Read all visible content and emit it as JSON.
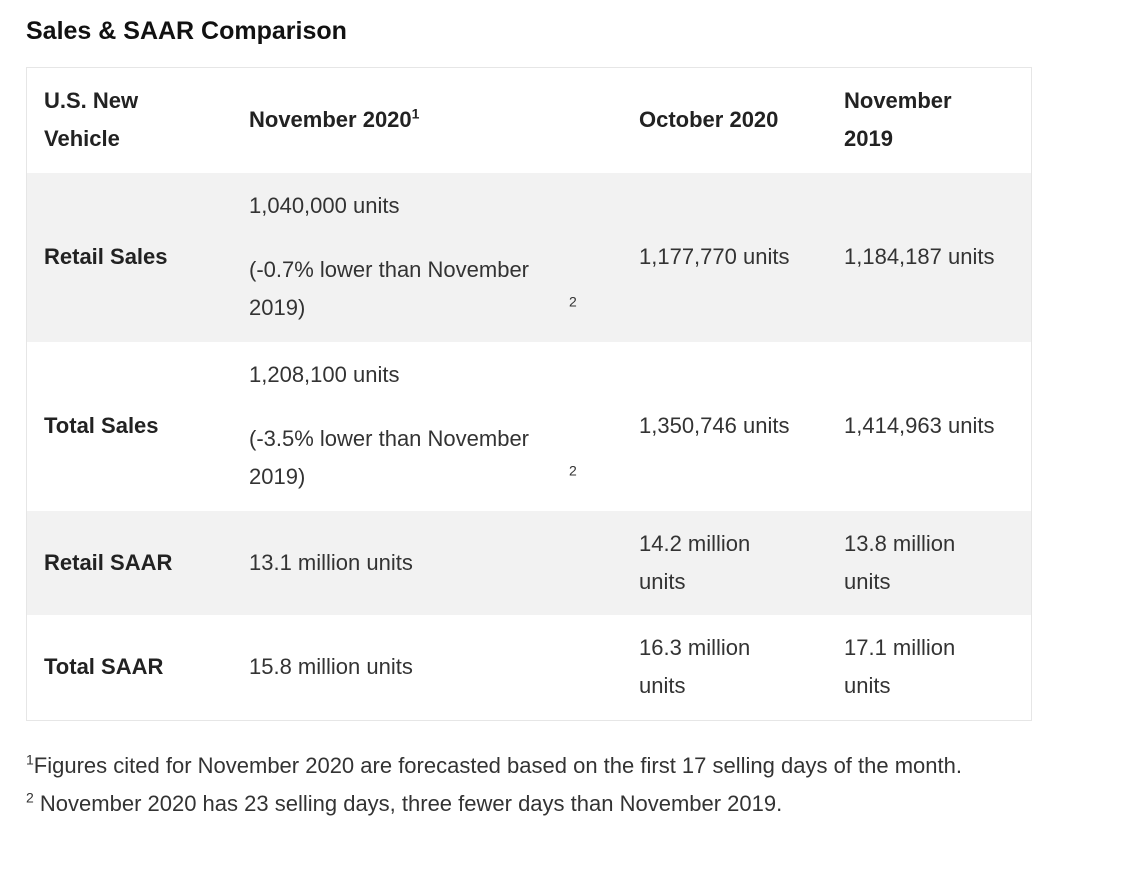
{
  "title": "Sales & SAAR Comparison",
  "table": {
    "headers": [
      {
        "label": "U.S. New Vehicle",
        "sup": ""
      },
      {
        "label": "November 2020",
        "sup": "1"
      },
      {
        "label": "October 2020",
        "sup": ""
      },
      {
        "label": "November 2019",
        "sup": ""
      }
    ],
    "rows": [
      {
        "label": "Retail Sales",
        "nov2020": "1,040,000 units",
        "nov2020_note": "(-0.7% lower than November 2019)",
        "nov2020_note_sup": "2",
        "oct2020": "1,177,770 units",
        "nov2019": "1,184,187 units"
      },
      {
        "label": "Total Sales",
        "nov2020": "1,208,100 units",
        "nov2020_note": "(-3.5% lower than November 2019)",
        "nov2020_note_sup": "2",
        "oct2020": "1,350,746 units",
        "nov2019": "1,414,963 units"
      },
      {
        "label": "Retail SAAR",
        "nov2020": "13.1 million units",
        "oct2020": "14.2 million units",
        "nov2019": "13.8 million units"
      },
      {
        "label": "Total SAAR",
        "nov2020": "15.8 million units",
        "oct2020": "16.3 million units",
        "nov2019": "17.1 million units"
      }
    ]
  },
  "footnotes": [
    {
      "sup": "1",
      "text": "Figures cited for November 2020 are forecasted based on the first 17 selling days of the month."
    },
    {
      "sup": "2",
      "text": " November 2020 has 23 selling days, three fewer days than November 2019."
    }
  ]
}
